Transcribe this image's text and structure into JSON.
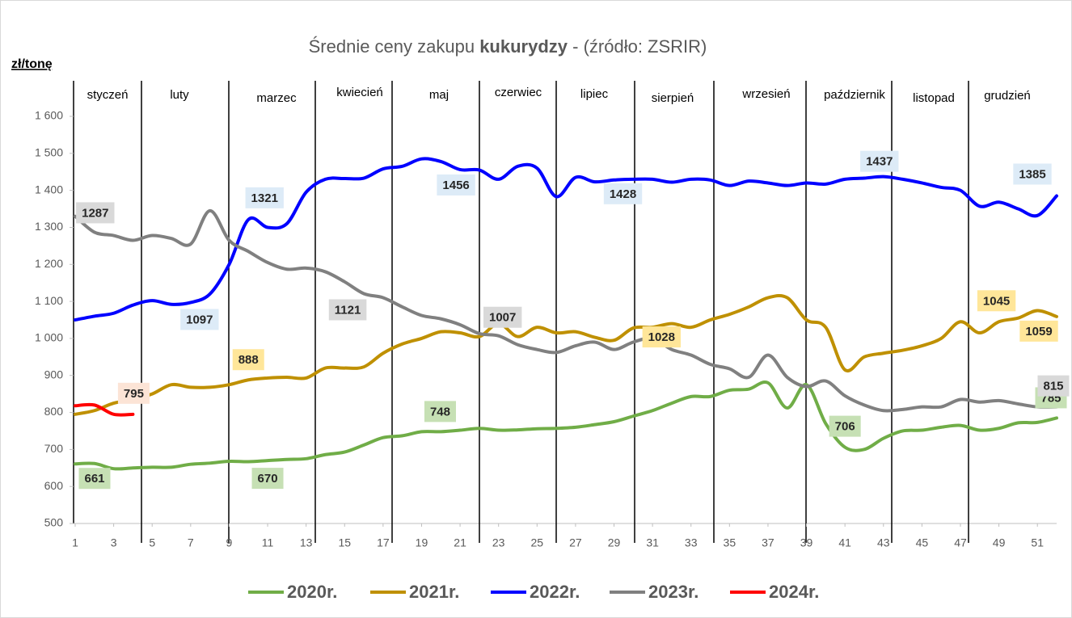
{
  "chart_data": {
    "type": "line",
    "title": [
      "Średnie ceny zakupu ",
      "kukurydzy",
      " - (źródło: ZSRIR)"
    ],
    "y_label": "zł/tonę",
    "months": [
      "styczeń",
      "luty",
      "marzec",
      "kwiecień",
      "maj",
      "czerwiec",
      "lipiec",
      "sierpień",
      "wrzesień",
      "październik",
      "listopad",
      "grudzień"
    ],
    "x": [
      1,
      2,
      3,
      4,
      5,
      6,
      7,
      8,
      9,
      10,
      11,
      12,
      13,
      14,
      15,
      16,
      17,
      18,
      19,
      20,
      21,
      22,
      23,
      24,
      25,
      26,
      27,
      28,
      29,
      30,
      31,
      32,
      33,
      34,
      35,
      36,
      37,
      38,
      39,
      40,
      41,
      42,
      43,
      44,
      45,
      46,
      47,
      48,
      49,
      50,
      51,
      52
    ],
    "xlim": [
      1,
      52
    ],
    "xticks": [
      1,
      3,
      5,
      7,
      9,
      11,
      13,
      15,
      17,
      19,
      21,
      23,
      25,
      27,
      29,
      31,
      33,
      35,
      37,
      39,
      41,
      43,
      45,
      47,
      49,
      51
    ],
    "ylim": [
      500,
      1600
    ],
    "yticks": [
      {
        "value": 500,
        "label": "500"
      },
      {
        "value": 600,
        "label": "600"
      },
      {
        "value": 700,
        "label": "700"
      },
      {
        "value": 800,
        "label": "800"
      },
      {
        "value": 900,
        "label": "900"
      },
      {
        "value": 1000,
        "label": "1 000"
      },
      {
        "value": 1100,
        "label": "1 100"
      },
      {
        "value": 1200,
        "label": "1 200"
      },
      {
        "value": 1300,
        "label": "1 300"
      },
      {
        "value": 1400,
        "label": "1 400"
      },
      {
        "value": 1500,
        "label": "1 500"
      },
      {
        "value": 1600,
        "label": "1 600"
      }
    ],
    "grid": false,
    "legend": "bottom",
    "series": [
      {
        "name": "2020r.",
        "color": "#70ad47",
        "label_color": "#c6e0b4",
        "values": [
          661,
          662,
          648,
          650,
          652,
          652,
          660,
          663,
          668,
          667,
          670,
          673,
          675,
          686,
          693,
          712,
          732,
          737,
          748,
          748,
          752,
          757,
          752,
          753,
          756,
          757,
          760,
          767,
          775,
          790,
          805,
          825,
          843,
          843,
          860,
          863,
          880,
          812,
          875,
          770,
          706,
          700,
          730,
          750,
          752,
          760,
          765,
          752,
          757,
          772,
          773,
          785
        ],
        "value_labels": [
          "661",
          null,
          null,
          null,
          null,
          null,
          null,
          null,
          null,
          null,
          "670",
          null,
          null,
          null,
          null,
          null,
          null,
          null,
          "748",
          null,
          null,
          null,
          null,
          null,
          null,
          null,
          null,
          null,
          null,
          null,
          null,
          null,
          null,
          null,
          null,
          null,
          null,
          null,
          null,
          null,
          "706",
          null,
          null,
          null,
          null,
          null,
          null,
          null,
          null,
          null,
          null,
          "785"
        ]
      },
      {
        "name": "2021r.",
        "color": "#bf9000",
        "label_color": "#ffe699",
        "values": [
          795,
          805,
          825,
          835,
          850,
          875,
          868,
          868,
          875,
          888,
          893,
          895,
          893,
          920,
          920,
          923,
          960,
          985,
          1000,
          1018,
          1015,
          1005,
          1040,
          1005,
          1030,
          1015,
          1018,
          1003,
          995,
          1028,
          1030,
          1040,
          1030,
          1050,
          1065,
          1085,
          1110,
          1110,
          1050,
          1030,
          915,
          950,
          960,
          968,
          980,
          1000,
          1045,
          1015,
          1045,
          1055,
          1075,
          1059
        ],
        "value_labels": [
          null,
          null,
          null,
          null,
          null,
          null,
          null,
          null,
          null,
          "888",
          null,
          null,
          null,
          null,
          null,
          null,
          null,
          null,
          null,
          null,
          null,
          null,
          null,
          null,
          null,
          null,
          null,
          null,
          null,
          "1028",
          null,
          null,
          null,
          null,
          null,
          null,
          null,
          null,
          null,
          null,
          null,
          null,
          null,
          null,
          null,
          null,
          null,
          null,
          "1045",
          null,
          null,
          "1059"
        ]
      },
      {
        "name": "2022r.",
        "color": "#0000ff",
        "label_color": "#ddebf7",
        "values": [
          1050,
          1060,
          1068,
          1090,
          1102,
          1092,
          1097,
          1120,
          1200,
          1321,
          1300,
          1310,
          1395,
          1430,
          1432,
          1433,
          1458,
          1465,
          1485,
          1478,
          1456,
          1455,
          1430,
          1465,
          1460,
          1383,
          1435,
          1423,
          1428,
          1430,
          1430,
          1422,
          1430,
          1428,
          1413,
          1425,
          1420,
          1413,
          1420,
          1417,
          1430,
          1433,
          1437,
          1430,
          1420,
          1408,
          1400,
          1357,
          1368,
          1350,
          1332,
          1385
        ],
        "value_labels": [
          null,
          null,
          null,
          null,
          null,
          null,
          "1097",
          null,
          null,
          "1321",
          null,
          null,
          null,
          null,
          null,
          null,
          null,
          null,
          null,
          null,
          "1456",
          null,
          null,
          null,
          null,
          null,
          null,
          null,
          "1428",
          null,
          null,
          null,
          null,
          null,
          null,
          null,
          null,
          null,
          null,
          null,
          null,
          null,
          "1437",
          null,
          null,
          null,
          null,
          null,
          null,
          null,
          null,
          "1385"
        ]
      },
      {
        "name": "2023r.",
        "color": "#808080",
        "label_color": "#d9d9d9",
        "values": [
          1330,
          1287,
          1278,
          1265,
          1278,
          1270,
          1255,
          1345,
          1265,
          1235,
          1205,
          1187,
          1190,
          1180,
          1153,
          1121,
          1110,
          1085,
          1062,
          1053,
          1037,
          1013,
          1007,
          983,
          970,
          962,
          980,
          990,
          970,
          990,
          1000,
          970,
          955,
          930,
          918,
          895,
          955,
          895,
          870,
          885,
          845,
          820,
          805,
          808,
          815,
          815,
          835,
          828,
          832,
          823,
          815,
          815
        ],
        "value_labels": [
          null,
          "1287",
          null,
          null,
          null,
          null,
          null,
          null,
          null,
          null,
          null,
          null,
          null,
          null,
          null,
          "1121",
          null,
          null,
          null,
          null,
          null,
          null,
          "1007",
          null,
          null,
          null,
          null,
          null,
          null,
          null,
          null,
          null,
          null,
          null,
          null,
          null,
          null,
          null,
          null,
          null,
          null,
          null,
          null,
          null,
          null,
          null,
          null,
          null,
          null,
          null,
          null,
          "815"
        ]
      },
      {
        "name": "2024r.",
        "color": "#ff0000",
        "label_color": "#fce4d6",
        "values": [
          818,
          820,
          795,
          795,
          null,
          null,
          null,
          null,
          null,
          null,
          null,
          null,
          null,
          null,
          null,
          null,
          null,
          null,
          null,
          null,
          null,
          null,
          null,
          null,
          null,
          null,
          null,
          null,
          null,
          null,
          null,
          null,
          null,
          null,
          null,
          null,
          null,
          null,
          null,
          null,
          null,
          null,
          null,
          null,
          null,
          null,
          null,
          null,
          null,
          null,
          null,
          null
        ],
        "value_labels": [
          null,
          null,
          null,
          "795",
          null,
          null,
          null,
          null,
          null,
          null,
          null,
          null,
          null,
          null,
          null,
          null,
          null,
          null,
          null,
          null,
          null,
          null,
          null,
          null,
          null,
          null,
          null,
          null,
          null,
          null,
          null,
          null,
          null,
          null,
          null,
          null,
          null,
          null,
          null,
          null,
          null,
          null,
          null,
          null,
          null,
          null,
          null,
          null,
          null,
          null,
          null,
          null
        ]
      }
    ]
  }
}
